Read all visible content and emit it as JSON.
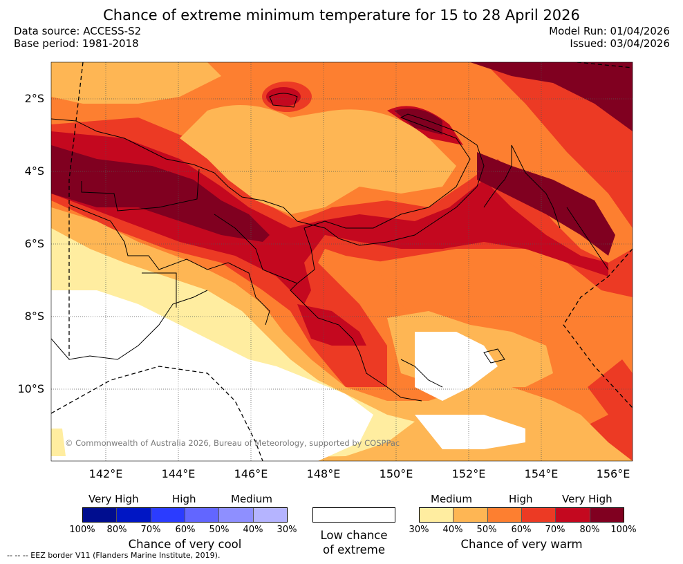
{
  "title": "Chance of extreme minimum temperature for 15 to 28 April 2026",
  "meta": {
    "data_source": "Data source: ACCESS-S2",
    "base_period": "Base period: 1981-2018",
    "model_run": "Model Run: 01/04/2026",
    "issued": "Issued: 03/04/2026"
  },
  "map": {
    "lat_labels": [
      "2°S",
      "4°S",
      "6°S",
      "8°S",
      "10°S"
    ],
    "lon_labels": [
      "142°E",
      "144°E",
      "146°E",
      "148°E",
      "150°E",
      "152°E",
      "154°E",
      "156°E"
    ],
    "copyright": "© Commonwealth of Australia 2026, Bureau of Meteorology, supported by COSPPac"
  },
  "legend": {
    "cool": {
      "levels": [
        "Very High",
        "High",
        "Medium"
      ],
      "percents": [
        "100%",
        "80%",
        "70%",
        "60%",
        "50%",
        "40%",
        "30%"
      ],
      "colors": [
        "#000d8f",
        "#0016c4",
        "#2b3cff",
        "#6266ff",
        "#8e8fff",
        "#b5b4ff"
      ],
      "title": "Chance of very cool"
    },
    "low": {
      "title_line1": "Low chance",
      "title_line2": "of extreme"
    },
    "warm": {
      "levels": [
        "Medium",
        "High",
        "Very High"
      ],
      "percents": [
        "30%",
        "40%",
        "50%",
        "60%",
        "70%",
        "80%",
        "100%"
      ],
      "colors": [
        "#ffeda0",
        "#feb654",
        "#fd7f30",
        "#ec3a24",
        "#c4081f",
        "#800020"
      ],
      "title": "Chance of very warm"
    },
    "eez_note": "-- -- -- EEZ border V11 (Flanders Marine Institute, 2019)."
  }
}
